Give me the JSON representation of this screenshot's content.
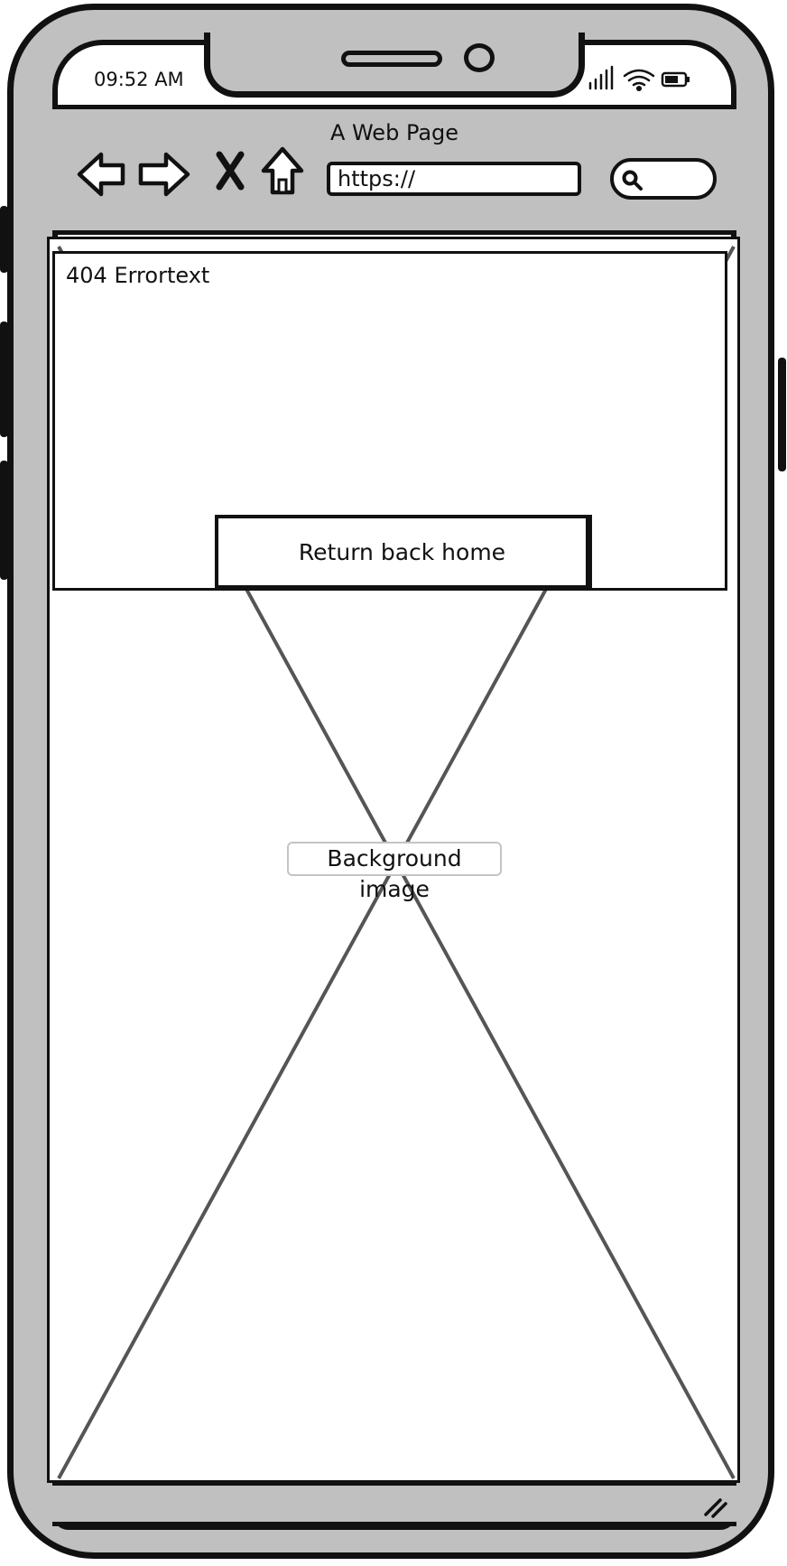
{
  "status_bar": {
    "time": "09:52 AM"
  },
  "browser": {
    "page_title": "A Web Page",
    "url": "https://",
    "nav_icons": [
      "back-arrow-icon",
      "forward-arrow-icon",
      "stop-icon",
      "home-icon"
    ]
  },
  "content": {
    "error_text": "404 Errortext",
    "home_button_label": "Return back home",
    "background_image_label": "Background image"
  },
  "colors": {
    "device_gray": "#c0c0c0",
    "ink": "#111111",
    "placeholder_line": "#555555"
  }
}
